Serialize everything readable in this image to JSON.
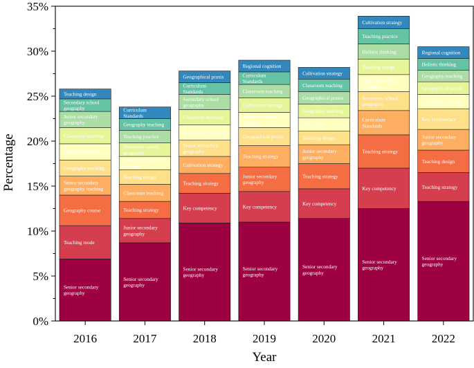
{
  "chart_data": {
    "type": "bar",
    "stacked": true,
    "title": "",
    "xlabel": "Year",
    "ylabel": "Percentage",
    "ylim": [
      0,
      35
    ],
    "yticks": [
      "0%",
      "5%",
      "10%",
      "15%",
      "20%",
      "25%",
      "30%",
      "35%"
    ],
    "categories": [
      "2016",
      "2017",
      "2018",
      "2019",
      "2020",
      "2021",
      "2022"
    ],
    "grid": false,
    "legend": "none",
    "palette": [
      "#9E0142",
      "#D53E4F",
      "#F46D43",
      "#FDAE61",
      "#FEE08B",
      "#FFFFBF",
      "#E6F598",
      "#ABDDA4",
      "#66C2A5",
      "#3288BD",
      "#5E4FA2"
    ],
    "stacks": [
      {
        "year": "2016",
        "segments": [
          {
            "label": "Senior secondary geography",
            "value": 6.9
          },
          {
            "label": "Teaching mode",
            "value": 3.7
          },
          {
            "label": "Geography course",
            "value": 3.4
          },
          {
            "label": "Senior secondary geography teaching",
            "value": 2.1
          },
          {
            "label": "Geography teaching",
            "value": 1.8
          },
          {
            "label": "Teaching strategy",
            "value": 1.8
          },
          {
            "label": "Classroom teaching",
            "value": 1.8
          },
          {
            "label": "Junior secondary geography",
            "value": 1.8
          },
          {
            "label": "Secondary school geography",
            "value": 1.4
          },
          {
            "label": "Teaching design",
            "value": 1.1
          }
        ]
      },
      {
        "year": "2017",
        "segments": [
          {
            "label": "Senior secondary geography",
            "value": 8.7
          },
          {
            "label": "Junior secondary geography",
            "value": 2.7
          },
          {
            "label": "Teaching strategy",
            "value": 1.9
          },
          {
            "label": "Classroom teaching",
            "value": 1.9
          },
          {
            "label": "Teaching design",
            "value": 1.6
          },
          {
            "label": "Senior secondary students",
            "value": 1.5
          },
          {
            "label": "Secondary school geography",
            "value": 1.5
          },
          {
            "label": "Teaching practice",
            "value": 1.4
          },
          {
            "label": "Geography teaching",
            "value": 1.3
          },
          {
            "label": "Curriculum Standards",
            "value": 1.3
          }
        ]
      },
      {
        "year": "2018",
        "segments": [
          {
            "label": "Senior secondary geography",
            "value": 10.9
          },
          {
            "label": "Key competency",
            "value": 3.3
          },
          {
            "label": "Teaching strategy",
            "value": 2.2
          },
          {
            "label": "Cultivation strategy",
            "value": 1.9
          },
          {
            "label": "Senior secondary geography",
            "value": 1.8
          },
          {
            "label": "Geography teaching",
            "value": 1.7
          },
          {
            "label": "Classroom teaching",
            "value": 1.7
          },
          {
            "label": "Secondary school geography",
            "value": 1.7
          },
          {
            "label": "Curriculum Standards",
            "value": 1.3
          },
          {
            "label": "Geographical praxis",
            "value": 1.3
          }
        ]
      },
      {
        "year": "2019",
        "segments": [
          {
            "label": "Senior secondary geography",
            "value": 11.0
          },
          {
            "label": "Key competency",
            "value": 3.4
          },
          {
            "label": "Junior secondary geography",
            "value": 2.7
          },
          {
            "label": "Teaching strategy",
            "value": 2.4
          },
          {
            "label": "Geographical praxis",
            "value": 2.0
          },
          {
            "label": "Senior secondary students",
            "value": 1.7
          },
          {
            "label": "Cultivation strategy",
            "value": 1.6
          },
          {
            "label": "Classroom teaching",
            "value": 1.5
          },
          {
            "label": "Curriculum Standards",
            "value": 1.4
          },
          {
            "label": "Regional cognition",
            "value": 1.3
          }
        ]
      },
      {
        "year": "2020",
        "segments": [
          {
            "label": "Senior secondary geography",
            "value": 11.4
          },
          {
            "label": "Key competency",
            "value": 3.3
          },
          {
            "label": "Teaching strategy",
            "value": 2.8
          },
          {
            "label": "Junior secondary geography",
            "value": 2.1
          },
          {
            "label": "Teaching design",
            "value": 1.5
          },
          {
            "label": "Study tour",
            "value": 1.5
          },
          {
            "label": "Geography teaching",
            "value": 1.5
          },
          {
            "label": "Geographical praxis",
            "value": 1.4
          },
          {
            "label": "Classroom teaching",
            "value": 1.4
          },
          {
            "label": "Cultivation strategy",
            "value": 1.3
          }
        ]
      },
      {
        "year": "2021",
        "segments": [
          {
            "label": "Senior secondary geography",
            "value": 12.5
          },
          {
            "label": "Key competency",
            "value": 4.5
          },
          {
            "label": "Teaching strategy",
            "value": 3.7
          },
          {
            "label": "Curriculum Standards",
            "value": 2.7
          },
          {
            "label": "Secondary school geography",
            "value": 2.1
          },
          {
            "label": "Junior secondary geography",
            "value": 1.9
          },
          {
            "label": "Teaching design",
            "value": 1.7
          },
          {
            "label": "Holistic thinking",
            "value": 1.7
          },
          {
            "label": "Teaching practice",
            "value": 1.7
          },
          {
            "label": "Cultivation strategy",
            "value": 1.4
          }
        ]
      },
      {
        "year": "2022",
        "segments": [
          {
            "label": "Senior secondary geography",
            "value": 13.3
          },
          {
            "label": "Teaching strategy",
            "value": 3.2
          },
          {
            "label": "Teaching design",
            "value": 2.5
          },
          {
            "label": "Junior secondary geography",
            "value": 2.3
          },
          {
            "label": "Key competency",
            "value": 2.3
          },
          {
            "label": "Cultivation strategy",
            "value": 1.6
          },
          {
            "label": "Geographical praxis",
            "value": 1.4
          },
          {
            "label": "Geography teaching",
            "value": 1.3
          },
          {
            "label": "Holistic thinking",
            "value": 1.3
          },
          {
            "label": "Regional cognition",
            "value": 1.3
          }
        ]
      }
    ]
  }
}
